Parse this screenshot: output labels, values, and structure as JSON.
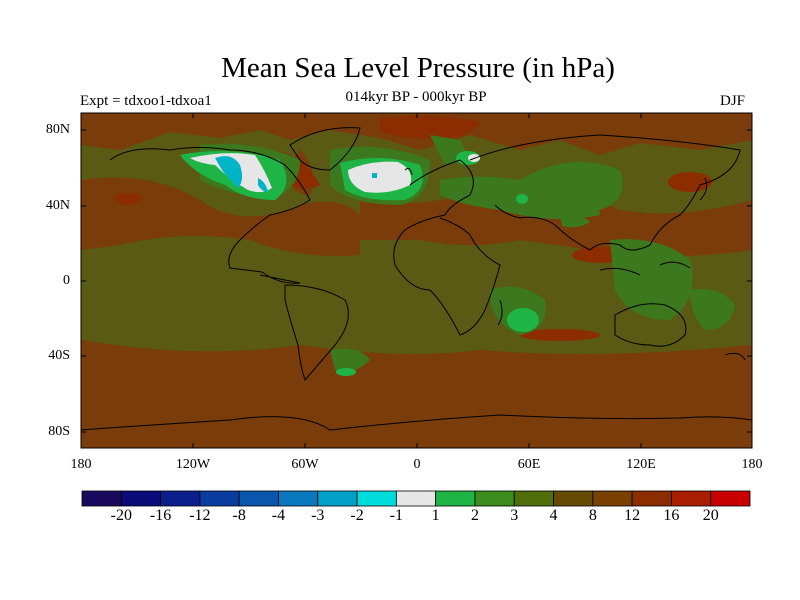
{
  "title": "Mean Sea Level Pressure (in hPa)",
  "subtitle": "014kyr BP - 000kyr BP",
  "experiment": "Expt = tdxoo1-tdxoa1",
  "season": "DJF",
  "lat_labels": [
    "80N",
    "40N",
    "0",
    "40S",
    "80S"
  ],
  "lon_labels": [
    "180",
    "120W",
    "60W",
    "0",
    "60E",
    "120E",
    "180"
  ],
  "colorbar": {
    "colors": [
      "#1a0a5e",
      "#0a0a78",
      "#0a1e8c",
      "#0a3ca0",
      "#0a55ae",
      "#0a78be",
      "#00a0c8",
      "#00dcdc",
      "#e6e6e6",
      "#1eb446",
      "#3c8c1e",
      "#506e0a",
      "#644a05",
      "#784100",
      "#8c2d00",
      "#aa1e00",
      "#c80000"
    ],
    "labels": [
      "-20",
      "-16",
      "-12",
      "-8",
      "-4",
      "-3",
      "-2",
      "-1",
      "1",
      "2",
      "3",
      "4",
      "8",
      "12",
      "16",
      "20"
    ]
  },
  "colors": {
    "background": "#5a5a14",
    "red_brown": "#7a3c0a",
    "dark_red": "#8c2d00",
    "green": "#3c781e",
    "bright_green": "#1eb446",
    "ice_white": "#e6e6e6",
    "cyan": "#00b4c8",
    "coast": "#000000"
  }
}
